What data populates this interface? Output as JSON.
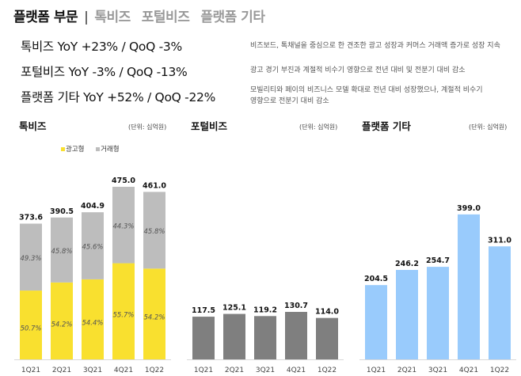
{
  "header": {
    "main": "플랫폼 부문",
    "separator": "|",
    "tabs": [
      "톡비즈",
      "포털비즈",
      "플랫폼 기타"
    ]
  },
  "summary": [
    {
      "label": "톡비즈  YoY +23% / QoQ -3%",
      "desc": [
        "비즈보드, 톡채널을 중심으로 한 견조한 광고 성장과 커머스 거래액 증가로 성장 지속"
      ]
    },
    {
      "label": "포털비즈  YoY -3% / QoQ -13%",
      "desc": [
        "광고 경기 부진과 계절적 비수기 영향으로 전년 대비 및 전분기 대비 감소"
      ]
    },
    {
      "label": "플랫폼 기타  YoY +52% / QoQ -22%",
      "desc": [
        "모빌리티와 페이의 비즈니스 모델 확대로 전년 대비 성장했으나, 계절적 비수기",
        "영향으로 전분기 대비 감소"
      ]
    }
  ],
  "chart_data": [
    {
      "type": "bar",
      "stacked": true,
      "title": "톡비즈",
      "unit": "(단위: 십억원)",
      "categories": [
        "1Q21",
        "2Q21",
        "3Q21",
        "4Q21",
        "1Q22"
      ],
      "totals": [
        373.6,
        390.5,
        404.9,
        475.0,
        461.0
      ],
      "series": [
        {
          "name": "광고형",
          "color": "#f9e02f",
          "share_labels": [
            "50.7%",
            "54.2%",
            "54.4%",
            "55.7%",
            "54.2%"
          ],
          "share": [
            50.7,
            54.2,
            54.4,
            55.7,
            54.2
          ]
        },
        {
          "name": "거래형",
          "color": "#bdbdbd",
          "share_labels": [
            "49.3%",
            "45.8%",
            "45.6%",
            "44.3%",
            "45.8%"
          ],
          "share": [
            49.3,
            45.8,
            45.6,
            44.3,
            45.8
          ]
        }
      ]
    },
    {
      "type": "bar",
      "title": "포털비즈",
      "unit": "(단위: 십억원)",
      "color": "#7f7f7f",
      "categories": [
        "1Q21",
        "2Q21",
        "3Q21",
        "4Q21",
        "1Q22"
      ],
      "values": [
        117.5,
        125.1,
        119.2,
        130.7,
        114.0
      ],
      "value_labels": [
        "117.5",
        "125.1",
        "119.2",
        "130.7",
        "114.0"
      ]
    },
    {
      "type": "bar",
      "title": "플랫폼 기타",
      "unit": "(단위: 십억원)",
      "color": "#99cbfc",
      "categories": [
        "1Q21",
        "2Q21",
        "3Q21",
        "4Q21",
        "1Q22"
      ],
      "values": [
        204.5,
        246.2,
        254.7,
        399.0,
        311.0
      ],
      "value_labels": [
        "204.5",
        "246.2",
        "254.7",
        "399.0",
        "311.0"
      ]
    }
  ],
  "talk_total_labels": [
    "373.6",
    "390.5",
    "404.9",
    "475.0",
    "461.0"
  ]
}
